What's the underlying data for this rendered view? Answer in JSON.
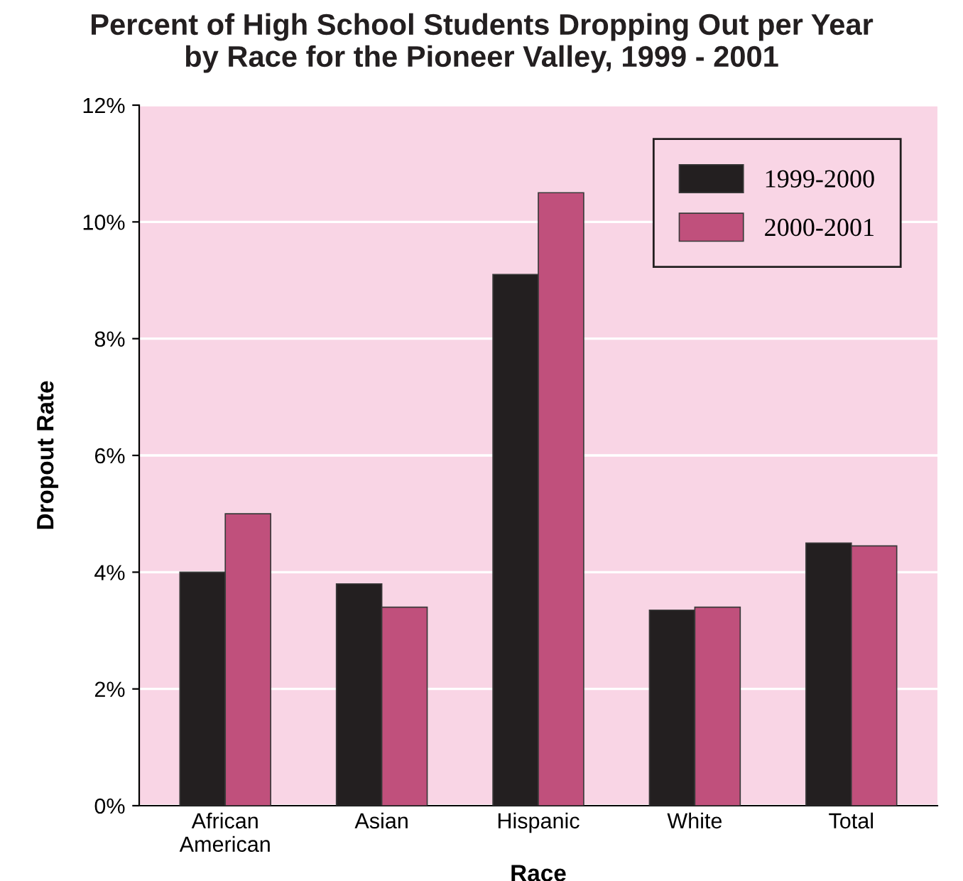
{
  "chart_data": {
    "type": "bar",
    "title": "Percent of High School Students Dropping Out per Year\nby Race for the Pioneer Valley, 1999 - 2001",
    "xlabel": "Race",
    "ylabel": "Dropout Rate",
    "categories": [
      "African\nAmerican",
      "Asian",
      "Hispanic",
      "White",
      "Total"
    ],
    "series": [
      {
        "name": "1999-2000",
        "color": "#231f20",
        "values": [
          4.0,
          3.8,
          9.1,
          3.35,
          4.5
        ]
      },
      {
        "name": "2000-2001",
        "color": "#c0507c",
        "values": [
          5.0,
          3.4,
          10.5,
          3.4,
          4.45
        ]
      }
    ],
    "ylim": [
      0,
      12
    ],
    "yticks": [
      {
        "value": 0,
        "label": "0%"
      },
      {
        "value": 2,
        "label": "2%"
      },
      {
        "value": 4,
        "label": "4%"
      },
      {
        "value": 6,
        "label": "6%"
      },
      {
        "value": 8,
        "label": "8%"
      },
      {
        "value": 10,
        "label": "10%"
      },
      {
        "value": 12,
        "label": "12%"
      }
    ],
    "grid": "y",
    "legend": "top right"
  }
}
